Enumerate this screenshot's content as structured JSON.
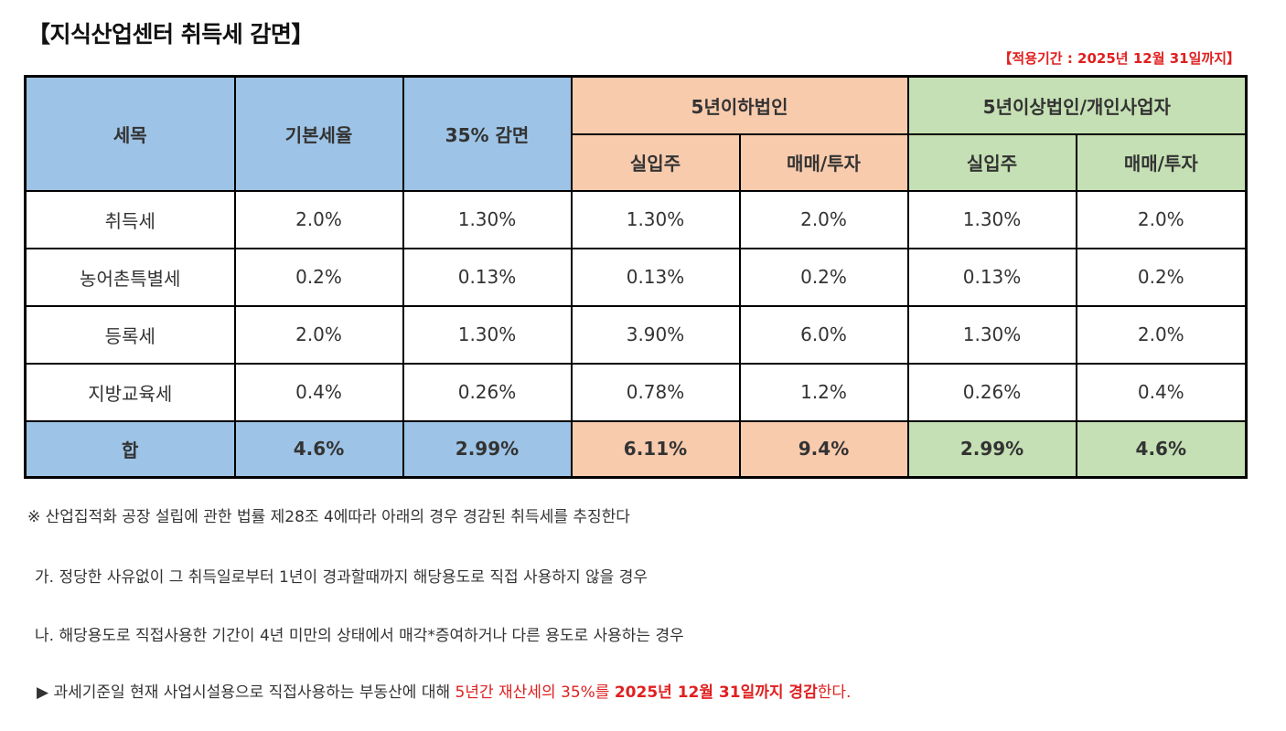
{
  "title": "【지식산업센터 취득세 감면】",
  "period": "【적용기간 : 2025년 12월 31일까지】",
  "table": {
    "headers": {
      "item": "세목",
      "base_rate": "기본세율",
      "reduction": "35% 감면",
      "group_under5": "5년이하법인",
      "group_over5": "5년이상법인/개인사업자",
      "occupancy": "실입주",
      "trade": "매매/투자"
    },
    "rows": [
      {
        "name": "취득세",
        "cells": [
          "2.0%",
          "1.30%",
          "1.30%",
          "2.0%",
          "1.30%",
          "2.0%"
        ]
      },
      {
        "name": "농어촌특별세",
        "cells": [
          "0.2%",
          "0.13%",
          "0.13%",
          "0.2%",
          "0.13%",
          "0.2%"
        ]
      },
      {
        "name": "등록세",
        "cells": [
          "2.0%",
          "1.30%",
          "3.90%",
          "6.0%",
          "1.30%",
          "2.0%"
        ]
      },
      {
        "name": "지방교육세",
        "cells": [
          "0.4%",
          "0.26%",
          "0.78%",
          "1.2%",
          "0.26%",
          "0.4%"
        ]
      }
    ],
    "total": {
      "name": "합",
      "cells": [
        "4.6%",
        "2.99%",
        "6.11%",
        "9.4%",
        "2.99%",
        "4.6%"
      ]
    }
  },
  "notes": {
    "n0": "※ 산업집적화 공장 설립에 관한 법률 제28조 4에따라 아래의 경우 경감된 취득세를 추징한다",
    "n1": "가. 정당한 사유없이 그 취득일로부터 1년이 경과할때까지 해당용도로 직접 사용하지 않을 경우",
    "n2": "나. 해당용도로 직접사용한 기간이 4년 미만의 상태에서 매각*증여하거나 다른 용도로 사용하는 경우",
    "n3_prefix": "▶ 과세기준일 현재 사업시설용으로 직접사용하는 부동산에 대해 ",
    "n3_red": "5년간 재산세의 35%를 ",
    "n3_redbold": "2025년 12월 31일까지 경감",
    "n3_suffix": "한다."
  },
  "colors": {
    "blue": "#9dc3e6",
    "orange": "#f8cbad",
    "green": "#c5e0b4",
    "red": "#e02020"
  }
}
